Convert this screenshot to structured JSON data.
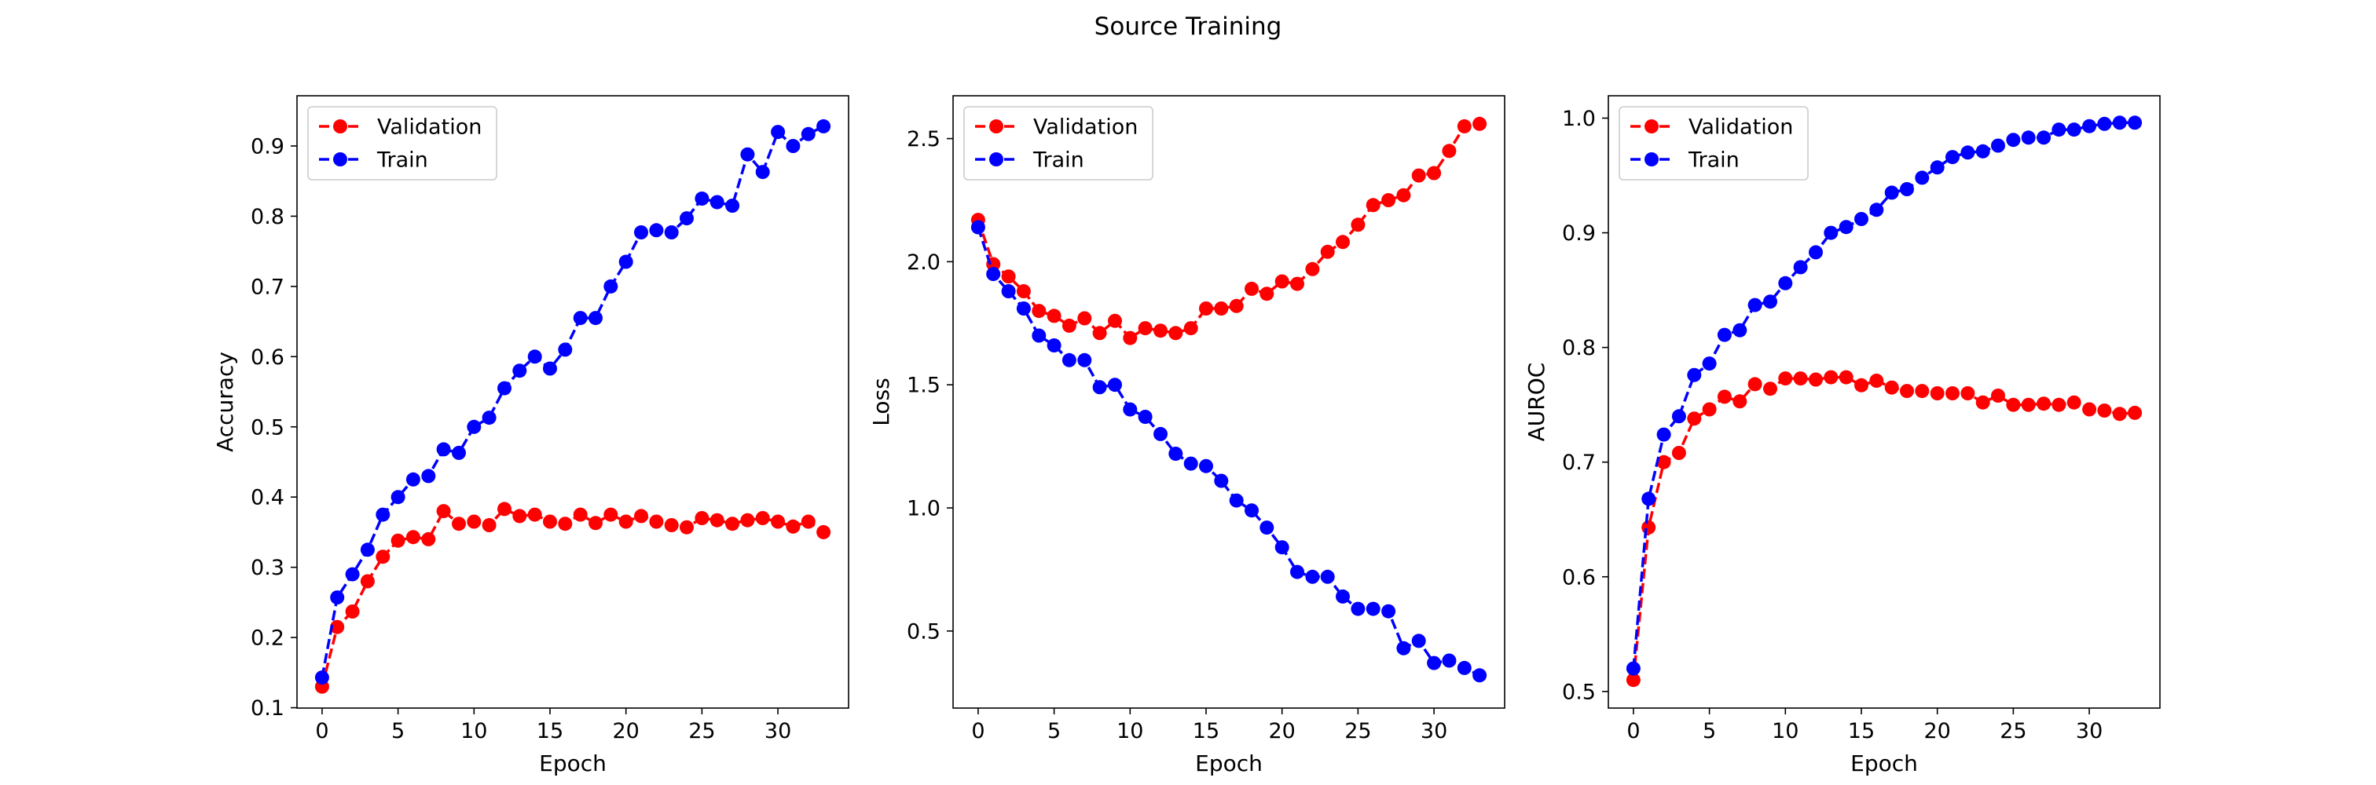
{
  "figure": {
    "suptitle": "Source Training"
  },
  "chart_data": [
    {
      "type": "line",
      "title": "",
      "xlabel": "Epoch",
      "ylabel": "Accuracy",
      "xlim": [
        -1.65,
        34.65
      ],
      "ylim": [
        0.0995,
        0.9715
      ],
      "xticks": [
        0,
        5,
        10,
        15,
        20,
        25,
        30
      ],
      "yticks": [
        0.1,
        0.2,
        0.3,
        0.4,
        0.5,
        0.6,
        0.7,
        0.8,
        0.9
      ],
      "legend_position": "upper-left",
      "x": [
        0,
        1,
        2,
        3,
        4,
        5,
        6,
        7,
        8,
        9,
        10,
        11,
        12,
        13,
        14,
        15,
        16,
        17,
        18,
        19,
        20,
        21,
        22,
        23,
        24,
        25,
        26,
        27,
        28,
        29,
        30,
        31,
        32,
        33
      ],
      "series": [
        {
          "name": "Validation",
          "color": "#ff0000",
          "marker": "circle",
          "linestyle": "dashed",
          "values": [
            0.13,
            0.215,
            0.237,
            0.28,
            0.315,
            0.338,
            0.343,
            0.34,
            0.38,
            0.362,
            0.365,
            0.36,
            0.383,
            0.373,
            0.375,
            0.365,
            0.362,
            0.375,
            0.363,
            0.375,
            0.365,
            0.373,
            0.365,
            0.36,
            0.357,
            0.37,
            0.367,
            0.362,
            0.367,
            0.37,
            0.365,
            0.358,
            0.365,
            0.35
          ]
        },
        {
          "name": "Train",
          "color": "#0000ff",
          "marker": "circle",
          "linestyle": "dashed",
          "values": [
            0.143,
            0.257,
            0.29,
            0.325,
            0.375,
            0.4,
            0.425,
            0.43,
            0.468,
            0.463,
            0.5,
            0.513,
            0.555,
            0.58,
            0.6,
            0.583,
            0.61,
            0.655,
            0.655,
            0.7,
            0.735,
            0.777,
            0.78,
            0.777,
            0.797,
            0.825,
            0.82,
            0.815,
            0.888,
            0.863,
            0.92,
            0.9,
            0.917,
            0.928
          ]
        }
      ]
    },
    {
      "type": "line",
      "title": "",
      "xlabel": "Epoch",
      "ylabel": "Loss",
      "xlim": [
        -1.65,
        34.65
      ],
      "ylim": [
        0.187,
        2.674
      ],
      "xticks": [
        0,
        5,
        10,
        15,
        20,
        25,
        30
      ],
      "yticks": [
        0.5,
        1.0,
        1.5,
        2.0,
        2.5
      ],
      "legend_position": "upper-left",
      "x": [
        0,
        1,
        2,
        3,
        4,
        5,
        6,
        7,
        8,
        9,
        10,
        11,
        12,
        13,
        14,
        15,
        16,
        17,
        18,
        19,
        20,
        21,
        22,
        23,
        24,
        25,
        26,
        27,
        28,
        29,
        30,
        31,
        32,
        33
      ],
      "series": [
        {
          "name": "Validation",
          "color": "#ff0000",
          "marker": "circle",
          "linestyle": "dashed",
          "values": [
            2.17,
            1.99,
            1.94,
            1.88,
            1.8,
            1.78,
            1.74,
            1.77,
            1.71,
            1.76,
            1.69,
            1.73,
            1.72,
            1.71,
            1.73,
            1.81,
            1.81,
            1.82,
            1.89,
            1.87,
            1.92,
            1.91,
            1.97,
            2.04,
            2.08,
            2.15,
            2.23,
            2.25,
            2.27,
            2.35,
            2.36,
            2.45,
            2.55,
            2.56
          ]
        },
        {
          "name": "Train",
          "color": "#0000ff",
          "marker": "circle",
          "linestyle": "dashed",
          "values": [
            2.14,
            1.95,
            1.88,
            1.81,
            1.7,
            1.66,
            1.6,
            1.6,
            1.49,
            1.5,
            1.4,
            1.37,
            1.3,
            1.22,
            1.18,
            1.17,
            1.11,
            1.03,
            0.99,
            0.92,
            0.84,
            0.74,
            0.72,
            0.72,
            0.64,
            0.59,
            0.59,
            0.58,
            0.43,
            0.46,
            0.37,
            0.38,
            0.35,
            0.32
          ]
        }
      ]
    },
    {
      "type": "line",
      "title": "",
      "xlabel": "Epoch",
      "ylabel": "AUROC",
      "xlim": [
        -1.65,
        34.65
      ],
      "ylim": [
        0.4855,
        1.0195
      ],
      "xticks": [
        0,
        5,
        10,
        15,
        20,
        25,
        30
      ],
      "yticks": [
        0.5,
        0.6,
        0.7,
        0.8,
        0.9,
        1.0
      ],
      "legend_position": "upper-left",
      "x": [
        0,
        1,
        2,
        3,
        4,
        5,
        6,
        7,
        8,
        9,
        10,
        11,
        12,
        13,
        14,
        15,
        16,
        17,
        18,
        19,
        20,
        21,
        22,
        23,
        24,
        25,
        26,
        27,
        28,
        29,
        30,
        31,
        32,
        33
      ],
      "series": [
        {
          "name": "Validation",
          "color": "#ff0000",
          "marker": "circle",
          "linestyle": "dashed",
          "values": [
            0.51,
            0.643,
            0.7,
            0.708,
            0.738,
            0.746,
            0.757,
            0.753,
            0.768,
            0.764,
            0.773,
            0.773,
            0.772,
            0.774,
            0.774,
            0.767,
            0.771,
            0.765,
            0.762,
            0.762,
            0.76,
            0.76,
            0.76,
            0.752,
            0.758,
            0.75,
            0.75,
            0.751,
            0.75,
            0.752,
            0.746,
            0.745,
            0.742,
            0.743
          ]
        },
        {
          "name": "Train",
          "color": "#0000ff",
          "marker": "circle",
          "linestyle": "dashed",
          "values": [
            0.52,
            0.668,
            0.724,
            0.74,
            0.776,
            0.786,
            0.811,
            0.815,
            0.837,
            0.84,
            0.856,
            0.87,
            0.883,
            0.9,
            0.905,
            0.912,
            0.92,
            0.935,
            0.938,
            0.948,
            0.957,
            0.966,
            0.97,
            0.971,
            0.976,
            0.981,
            0.983,
            0.983,
            0.99,
            0.99,
            0.993,
            0.995,
            0.996,
            0.996
          ]
        }
      ]
    }
  ]
}
